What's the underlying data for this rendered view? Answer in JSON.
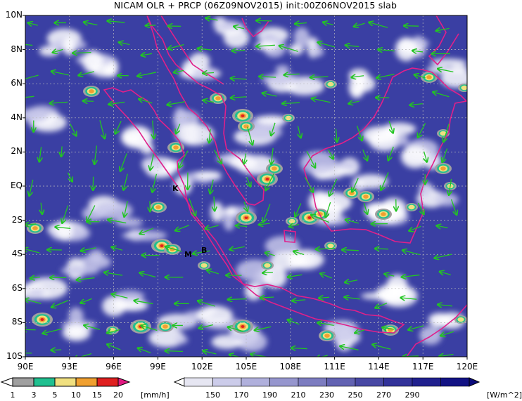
{
  "title": "NICAM OLR + PRCP (06Z09NOV2015) init:00Z06NOV2015 slab",
  "map": {
    "lat_labels": [
      "10N",
      "8N",
      "6N",
      "4N",
      "2N",
      "EQ",
      "2S",
      "4S",
      "6S",
      "8S",
      "10S"
    ],
    "lon_labels": [
      "90E",
      "93E",
      "96E",
      "99E",
      "102E",
      "105E",
      "108E",
      "111E",
      "114E",
      "117E",
      "120E"
    ],
    "markers": [
      {
        "id": "K",
        "label": "K",
        "lon": 100.5,
        "lat": -0.3
      },
      {
        "id": "M",
        "label": "M",
        "lon": 100.4,
        "lat": -4.1
      },
      {
        "id": "B",
        "label": "B",
        "lon": 102.2,
        "lat": -3.8
      }
    ]
  },
  "colors": {
    "olr_bg": "#3a3fa3",
    "coast": "#e0208a",
    "wind": "#22c522",
    "grid": "#bbbbbb"
  },
  "precip_colorbar": {
    "ticks": [
      "1",
      "3",
      "5",
      "10",
      "15",
      "20"
    ],
    "unit": "[mm/h]",
    "colors": [
      "#ffffff",
      "#a0a0a0",
      "#20c090",
      "#f0e080",
      "#f0a030",
      "#e02020",
      "#e01880"
    ]
  },
  "olr_colorbar": {
    "ticks": [
      "150",
      "170",
      "190",
      "210",
      "230",
      "250",
      "270",
      "290"
    ],
    "unit": "[W/m^2]",
    "colors": [
      "#ffffff",
      "#e6e6f2",
      "#ccccea",
      "#b0b0dc",
      "#9696ce",
      "#7c7cc0",
      "#6262b2",
      "#4848a4",
      "#32329a",
      "#20208e",
      "#121284",
      "#0a0a7a"
    ]
  }
}
